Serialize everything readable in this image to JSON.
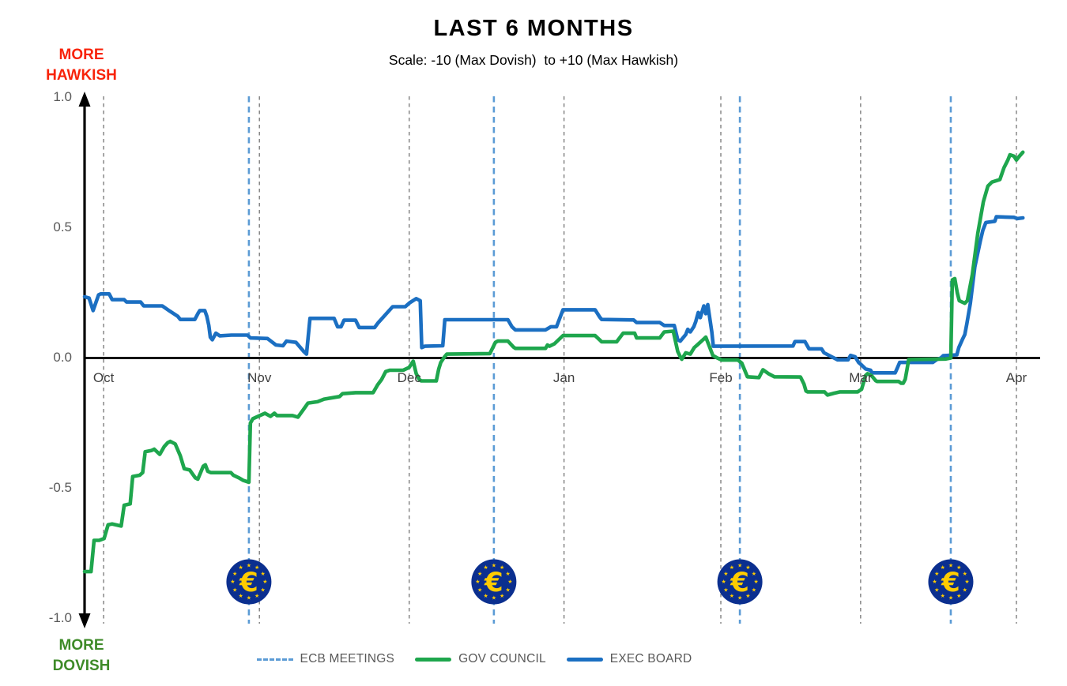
{
  "colors": {
    "gov_council": "#1ea64d",
    "exec_board": "#1b6fc2",
    "ecb_meeting_line": "#5b9bd5",
    "month_gridline": "#7f7f7f",
    "axis": "#000000",
    "coin_blue": "#0b2f8f",
    "coin_gold": "#ffcc00",
    "hawkish_text": "#f8230a",
    "dovish_text": "#3e8a28",
    "tick_text": "#595959",
    "month_text": "#3f3f3f",
    "legend_text": "#595959"
  },
  "chart_data": {
    "type": "line",
    "title": "LAST 6 MONTHS",
    "subtitle": "Scale: -10 (Max Dovish)  to +10 (Max Hawkish)",
    "annotations": {
      "hawkish": "MORE\nHAWKISH",
      "dovish": "MORE\nDOVISH"
    },
    "ylim": [
      -1.0,
      1.0
    ],
    "yticks": [
      {
        "value": 1.0,
        "label": "1.0"
      },
      {
        "value": 0.5,
        "label": "0.5"
      },
      {
        "value": 0.0,
        "label": "0.0"
      },
      {
        "value": -0.5,
        "label": "-0.5"
      },
      {
        "value": -1.0,
        "label": "-1.0"
      }
    ],
    "x_unit": "days along chart timeline (late Sep to early Apr)",
    "xlim_days": [
      0,
      188.5
    ],
    "months": [
      {
        "label": "Oct",
        "day": 3.8
      },
      {
        "label": "Nov",
        "day": 34.9
      },
      {
        "label": "Dec",
        "day": 64.8
      },
      {
        "label": "Jan",
        "day": 95.7
      },
      {
        "label": "Feb",
        "day": 127.0
      },
      {
        "label": "Mar",
        "day": 154.9
      },
      {
        "label": "Apr",
        "day": 186.0
      }
    ],
    "ecb_meetings": {
      "label": "ECB MEETINGS",
      "days": [
        32.8,
        81.7,
        130.8,
        172.9
      ]
    },
    "meeting_icon": {
      "name": "euro-coin-icon",
      "euro": "€",
      "star": "★"
    },
    "grid": "vertical dashed month lines only",
    "legend_position": "bottom-center",
    "legend_items": [
      {
        "id": "ecb-meetings",
        "label": "ECB MEETINGS",
        "marker": "dashed-line",
        "color": "#5b9bd5"
      },
      {
        "id": "gov-council",
        "label": "GOV COUNCIL",
        "marker": "solid-line",
        "color": "#1ea64d"
      },
      {
        "id": "exec-board",
        "label": "EXEC BOARD",
        "marker": "solid-line",
        "color": "#1b6fc2"
      }
    ],
    "series": [
      {
        "name": "GOV COUNCIL",
        "color": "#1ea64d",
        "points": [
          [
            0,
            -0.82
          ],
          [
            1.3,
            -0.82
          ],
          [
            1.9,
            -0.7
          ],
          [
            2.9,
            -0.7
          ],
          [
            3.9,
            -0.693
          ],
          [
            4.7,
            -0.64
          ],
          [
            5.5,
            -0.637
          ],
          [
            7.3,
            -0.645
          ],
          [
            7.9,
            -0.565
          ],
          [
            9.1,
            -0.56
          ],
          [
            9.6,
            -0.455
          ],
          [
            11,
            -0.45
          ],
          [
            11.6,
            -0.44
          ],
          [
            12.1,
            -0.36
          ],
          [
            13.4,
            -0.355
          ],
          [
            13.9,
            -0.35
          ],
          [
            15,
            -0.37
          ],
          [
            15.9,
            -0.34
          ],
          [
            16.6,
            -0.325
          ],
          [
            17.1,
            -0.32
          ],
          [
            18.1,
            -0.33
          ],
          [
            19.1,
            -0.375
          ],
          [
            19.9,
            -0.425
          ],
          [
            21,
            -0.43
          ],
          [
            22.1,
            -0.46
          ],
          [
            22.6,
            -0.465
          ],
          [
            23.7,
            -0.415
          ],
          [
            24.1,
            -0.41
          ],
          [
            24.6,
            -0.435
          ],
          [
            25.2,
            -0.44
          ],
          [
            29.2,
            -0.44
          ],
          [
            29.7,
            -0.45
          ],
          [
            30.8,
            -0.46
          ],
          [
            31.7,
            -0.47
          ],
          [
            32.8,
            -0.477
          ],
          [
            33.1,
            -0.25
          ],
          [
            33.6,
            -0.233
          ],
          [
            36,
            -0.212
          ],
          [
            37.1,
            -0.224
          ],
          [
            37.9,
            -0.212
          ],
          [
            38.4,
            -0.221
          ],
          [
            41.5,
            -0.221
          ],
          [
            42.6,
            -0.227
          ],
          [
            43.6,
            -0.2
          ],
          [
            44.6,
            -0.173
          ],
          [
            46.5,
            -0.168
          ],
          [
            47.8,
            -0.158
          ],
          [
            50.9,
            -0.148
          ],
          [
            51.5,
            -0.137
          ],
          [
            54.1,
            -0.133
          ],
          [
            57.6,
            -0.133
          ],
          [
            58.5,
            -0.103
          ],
          [
            59.3,
            -0.082
          ],
          [
            60.1,
            -0.052
          ],
          [
            60.9,
            -0.047
          ],
          [
            63.6,
            -0.047
          ],
          [
            64.8,
            -0.036
          ],
          [
            65.6,
            -0.012
          ],
          [
            66.2,
            -0.06
          ],
          [
            66.8,
            -0.082
          ],
          [
            67.2,
            -0.088
          ],
          [
            70.2,
            -0.088
          ],
          [
            70.7,
            -0.042
          ],
          [
            71.1,
            -0.017
          ],
          [
            71.8,
            0.003
          ],
          [
            72.3,
            0.015
          ],
          [
            80.9,
            0.017
          ],
          [
            82,
            0.06
          ],
          [
            82.5,
            0.065
          ],
          [
            84.5,
            0.065
          ],
          [
            85.6,
            0.042
          ],
          [
            86,
            0.037
          ],
          [
            92,
            0.037
          ],
          [
            92.4,
            0.05
          ],
          [
            92.8,
            0.045
          ],
          [
            93.8,
            0.055
          ],
          [
            95.5,
            0.086
          ],
          [
            101.9,
            0.086
          ],
          [
            102.8,
            0.07
          ],
          [
            103.2,
            0.062
          ],
          [
            106.2,
            0.062
          ],
          [
            107.5,
            0.095
          ],
          [
            109.8,
            0.095
          ],
          [
            110.2,
            0.077
          ],
          [
            114.8,
            0.077
          ],
          [
            115.7,
            0.1
          ],
          [
            117.5,
            0.103
          ],
          [
            118.4,
            0.025
          ],
          [
            118.9,
            0.005
          ],
          [
            119.2,
            -0.005
          ],
          [
            120,
            0.02
          ],
          [
            120.9,
            0.015
          ],
          [
            121.7,
            0.04
          ],
          [
            122.3,
            0.05
          ],
          [
            124,
            0.08
          ],
          [
            125.4,
            0.01
          ],
          [
            126.3,
            0
          ],
          [
            127.2,
            -0.008
          ],
          [
            130.4,
            -0.008
          ],
          [
            131.2,
            -0.02
          ],
          [
            132.3,
            -0.072
          ],
          [
            134.6,
            -0.075
          ],
          [
            135.4,
            -0.045
          ],
          [
            136.5,
            -0.06
          ],
          [
            137.7,
            -0.072
          ],
          [
            142.9,
            -0.073
          ],
          [
            143.6,
            -0.1
          ],
          [
            144,
            -0.127
          ],
          [
            144.3,
            -0.13
          ],
          [
            147.7,
            -0.13
          ],
          [
            148.3,
            -0.142
          ],
          [
            149.6,
            -0.135
          ],
          [
            150.8,
            -0.13
          ],
          [
            154.3,
            -0.13
          ],
          [
            155.1,
            -0.12
          ],
          [
            155.9,
            -0.067
          ],
          [
            156.3,
            -0.06
          ],
          [
            157.1,
            -0.068
          ],
          [
            157.9,
            -0.087
          ],
          [
            158.2,
            -0.09
          ],
          [
            162.5,
            -0.09
          ],
          [
            163,
            -0.097
          ],
          [
            163.4,
            -0.097
          ],
          [
            163.8,
            -0.082
          ],
          [
            164.2,
            -0.04
          ],
          [
            164.5,
            -0.006
          ],
          [
            171.9,
            -0.004
          ],
          [
            172.9,
            0
          ],
          [
            173.2,
            0.3
          ],
          [
            173.7,
            0.305
          ],
          [
            174.2,
            0.25
          ],
          [
            174.6,
            0.22
          ],
          [
            175.7,
            0.21
          ],
          [
            176.2,
            0.22
          ],
          [
            177.2,
            0.32
          ],
          [
            178.3,
            0.48
          ],
          [
            179.4,
            0.6
          ],
          [
            180.3,
            0.66
          ],
          [
            181.1,
            0.675
          ],
          [
            182.7,
            0.685
          ],
          [
            183.5,
            0.73
          ],
          [
            184.3,
            0.76
          ],
          [
            184.7,
            0.78
          ],
          [
            185.5,
            0.775
          ],
          [
            186,
            0.76
          ],
          [
            186.6,
            0.775
          ],
          [
            187.3,
            0.79
          ]
        ]
      },
      {
        "name": "EXEC BOARD",
        "color": "#1b6fc2",
        "points": [
          [
            0,
            0.235
          ],
          [
            0.9,
            0.23
          ],
          [
            1.7,
            0.182
          ],
          [
            2.8,
            0.242
          ],
          [
            3.2,
            0.246
          ],
          [
            4.9,
            0.246
          ],
          [
            5.5,
            0.224
          ],
          [
            7.9,
            0.224
          ],
          [
            8.4,
            0.215
          ],
          [
            11.2,
            0.215
          ],
          [
            11.8,
            0.2
          ],
          [
            15.5,
            0.2
          ],
          [
            17,
            0.18
          ],
          [
            18.6,
            0.16
          ],
          [
            19.1,
            0.148
          ],
          [
            22,
            0.148
          ],
          [
            22.6,
            0.17
          ],
          [
            23,
            0.182
          ],
          [
            24,
            0.182
          ],
          [
            24.4,
            0.16
          ],
          [
            24.8,
            0.125
          ],
          [
            25.1,
            0.08
          ],
          [
            25.5,
            0.07
          ],
          [
            26.2,
            0.095
          ],
          [
            27,
            0.085
          ],
          [
            29.3,
            0.088
          ],
          [
            32.5,
            0.088
          ],
          [
            33.1,
            0.077
          ],
          [
            36.5,
            0.075
          ],
          [
            38.2,
            0.05
          ],
          [
            39.6,
            0.047
          ],
          [
            40.3,
            0.065
          ],
          [
            42.2,
            0.06
          ],
          [
            43.8,
            0.024
          ],
          [
            44.3,
            0.015
          ],
          [
            45,
            0.152
          ],
          [
            49.8,
            0.152
          ],
          [
            50.5,
            0.12
          ],
          [
            51.2,
            0.12
          ],
          [
            51.8,
            0.145
          ],
          [
            54.1,
            0.145
          ],
          [
            54.8,
            0.117
          ],
          [
            57.9,
            0.117
          ],
          [
            58.6,
            0.135
          ],
          [
            61.5,
            0.197
          ],
          [
            64,
            0.197
          ],
          [
            64.9,
            0.212
          ],
          [
            66.2,
            0.228
          ],
          [
            67,
            0.22
          ],
          [
            67.3,
            0.04
          ],
          [
            67.9,
            0.045
          ],
          [
            71.5,
            0.047
          ],
          [
            71.9,
            0.147
          ],
          [
            84.5,
            0.147
          ],
          [
            85.3,
            0.12
          ],
          [
            86,
            0.108
          ],
          [
            92,
            0.108
          ],
          [
            93.1,
            0.12
          ],
          [
            94.2,
            0.12
          ],
          [
            95.5,
            0.185
          ],
          [
            101.9,
            0.185
          ],
          [
            102.8,
            0.158
          ],
          [
            103.2,
            0.148
          ],
          [
            109.6,
            0.146
          ],
          [
            110.2,
            0.136
          ],
          [
            114.8,
            0.136
          ],
          [
            115.7,
            0.125
          ],
          [
            117.7,
            0.125
          ],
          [
            118.4,
            0.07
          ],
          [
            118.9,
            0.065
          ],
          [
            120,
            0.09
          ],
          [
            120.4,
            0.11
          ],
          [
            120.9,
            0.1
          ],
          [
            121.6,
            0.12
          ],
          [
            122,
            0.14
          ],
          [
            122.5,
            0.175
          ],
          [
            122.9,
            0.155
          ],
          [
            123.6,
            0.2
          ],
          [
            124,
            0.17
          ],
          [
            124.4,
            0.205
          ],
          [
            125.2,
            0.1
          ],
          [
            125.5,
            0.045
          ],
          [
            141.4,
            0.046
          ],
          [
            141.8,
            0.063
          ],
          [
            143.8,
            0.063
          ],
          [
            144.6,
            0.035
          ],
          [
            147.1,
            0.035
          ],
          [
            147.6,
            0.02
          ],
          [
            149.1,
            0.005
          ],
          [
            150.3,
            -0.007
          ],
          [
            152.4,
            -0.007
          ],
          [
            152.9,
            0.01
          ],
          [
            153.8,
            0.005
          ],
          [
            154.5,
            -0.017
          ],
          [
            155.1,
            -0.027
          ],
          [
            155.9,
            -0.042
          ],
          [
            156.9,
            -0.047
          ],
          [
            157.2,
            -0.057
          ],
          [
            161.8,
            -0.057
          ],
          [
            162.2,
            -0.04
          ],
          [
            162.7,
            -0.017
          ],
          [
            169.3,
            -0.017
          ],
          [
            170.1,
            -0.006
          ],
          [
            170.9,
            0
          ],
          [
            171.4,
            0.009
          ],
          [
            174.1,
            0.012
          ],
          [
            174.5,
            0.04
          ],
          [
            175.2,
            0.07
          ],
          [
            175.7,
            0.09
          ],
          [
            176.1,
            0.13
          ],
          [
            176.8,
            0.21
          ],
          [
            177.7,
            0.35
          ],
          [
            178.8,
            0.45
          ],
          [
            179.3,
            0.49
          ],
          [
            179.9,
            0.52
          ],
          [
            181.7,
            0.525
          ],
          [
            182,
            0.542
          ],
          [
            185.5,
            0.54
          ],
          [
            186.2,
            0.535
          ],
          [
            187.3,
            0.538
          ]
        ]
      }
    ]
  }
}
